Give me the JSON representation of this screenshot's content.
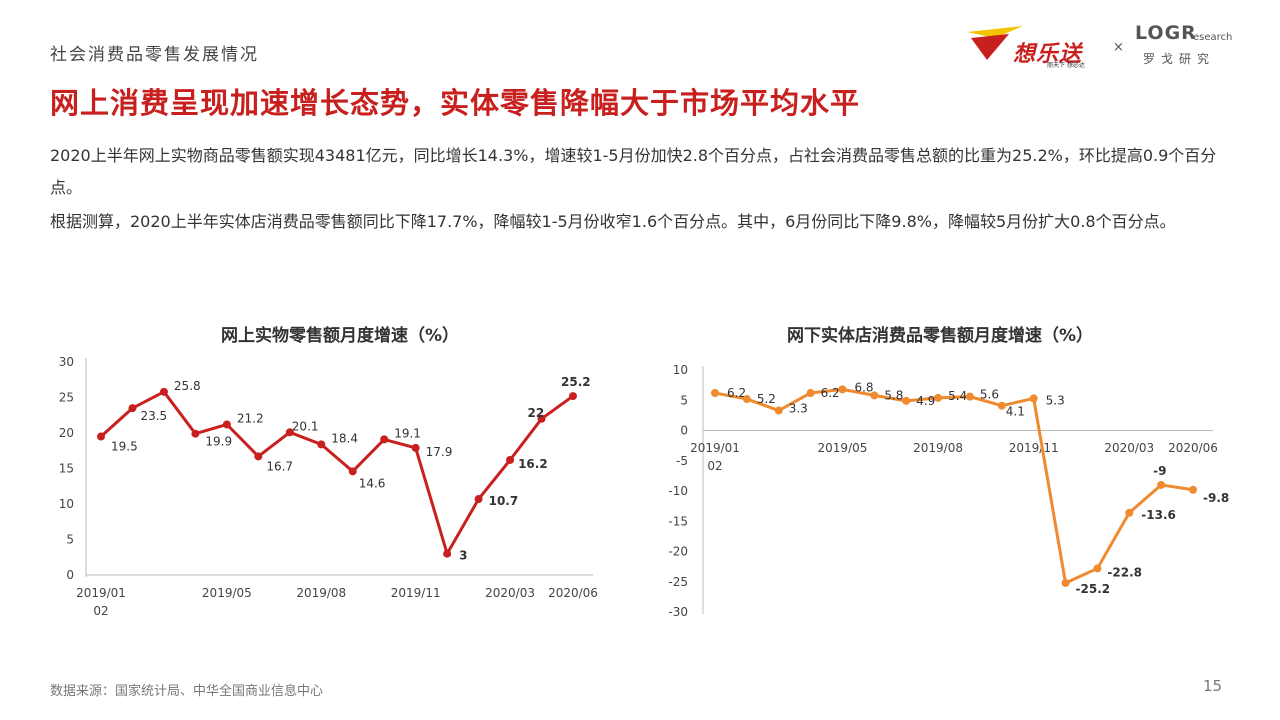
{
  "header": {
    "section_label": "社会消费品零售发展情况",
    "headline": "网上消费呈现加速增长态势，实体零售降幅大于市场平均水平"
  },
  "brands": {
    "brand_a": "想乐送",
    "brand_a_tagline": "丽天下 想必达",
    "separator": "×",
    "brand_b": "LOGR",
    "brand_b_suffix": "esearch",
    "brand_b_cn": "罗戈研究",
    "brand_a_color": "#c8201e",
    "brand_a_accent": "#f3c400"
  },
  "paragraphs": {
    "p1": "2020上半年网上实物商品零售额实现43481亿元，同比增长14.3%，增速较1-5月份加快2.8个百分点，占社会消费品零售总额的比重为25.2%，环比提高0.9个百分点。",
    "p2": "根据测算，2020上半年实体店消费品零售额同比下降17.7%，降幅较1-5月份收窄1.6个百分点。其中，6月份同比下降9.8%，降幅较5月份扩大0.8个百分点。"
  },
  "footer": {
    "source": "数据来源：国家统计局、中华全国商业信息中心",
    "page_number": "15"
  },
  "chart_data": [
    {
      "type": "line",
      "title": "网上实物零售额月度增速（%）",
      "color": "#c8201e",
      "ylim": [
        0,
        30
      ],
      "yticks": [
        0,
        5,
        10,
        15,
        20,
        25,
        30
      ],
      "x_tick_labels": [
        "2019/01\n02",
        "2019/05",
        "2019/08",
        "2019/11",
        "2020/03",
        "2020/06"
      ],
      "values": [
        19.5,
        23.5,
        25.8,
        19.9,
        21.2,
        16.7,
        20.1,
        18.4,
        14.6,
        19.1,
        17.9,
        3,
        10.7,
        16.2,
        22,
        25.2
      ],
      "labels": [
        "19.5",
        "23.5",
        "25.8",
        "19.9",
        "21.2",
        "16.7",
        "20.1",
        "18.4",
        "14.6",
        "19.1",
        "17.9",
        "3",
        "10.7",
        "16.2",
        "22",
        "25.2"
      ],
      "grid": false
    },
    {
      "type": "line",
      "title": "网下实体店消费品零售额月度增速（%）",
      "color": "#ef8a2e",
      "ylim": [
        -30,
        10
      ],
      "yticks": [
        -30,
        -25,
        -20,
        -15,
        -10,
        -5,
        0,
        5,
        10
      ],
      "x_tick_labels": [
        "2019/01\n02",
        "2019/05",
        "2019/08",
        "2019/11",
        "2020/03",
        "2020/06"
      ],
      "values": [
        6.2,
        5.2,
        3.3,
        6.2,
        6.8,
        5.8,
        4.9,
        5.4,
        5.6,
        4.1,
        5.3,
        -25.2,
        -22.8,
        -13.6,
        -9,
        -9.8
      ],
      "labels": [
        "6.2",
        "5.2",
        "3.3",
        "6.2",
        "6.8",
        "5.8",
        "4.9",
        "5.4",
        "5.6",
        "4.1",
        "5.3",
        "-25.2",
        "-22.8",
        "-13.6",
        "-9",
        "-9.8"
      ],
      "grid": false
    }
  ]
}
